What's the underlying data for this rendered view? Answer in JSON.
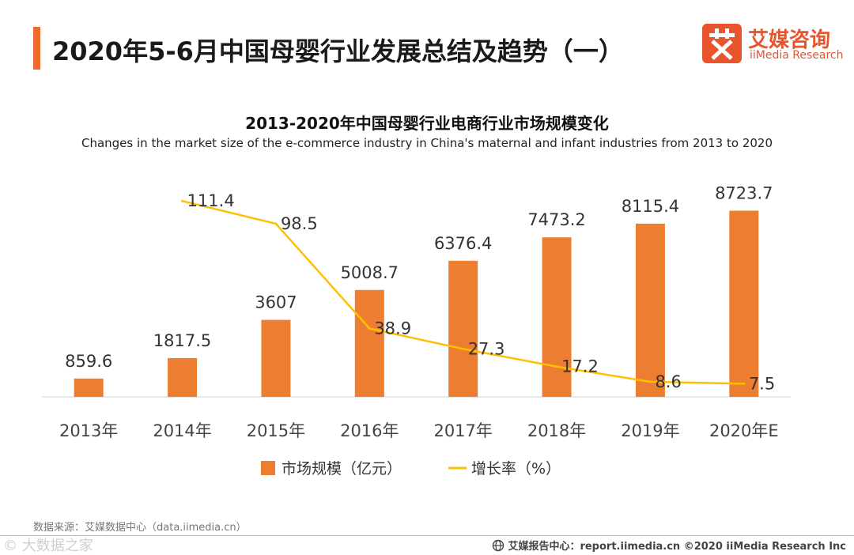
{
  "page": {
    "title": "2020年5-6月中国母婴行业发展总结及趋势（一）",
    "accent_color": "#ee6a2d"
  },
  "logo": {
    "cn": "艾媒咨询",
    "en": "iiMedia Research",
    "icon": "iimedia-logo-icon",
    "color": "#e8542b"
  },
  "chart_data": {
    "type": "bar",
    "title": "2013-2020年中国母婴行业电商行业市场规模变化",
    "subtitle": "Changes in the market size of the e-commerce industry in China's maternal and infant industries from 2013 to 2020",
    "categories": [
      "2013年",
      "2014年",
      "2015年",
      "2016年",
      "2017年",
      "2018年",
      "2019年",
      "2020年E"
    ],
    "series": [
      {
        "name": "市场规模（亿元）",
        "type": "bar",
        "color": "#ed7d31",
        "values": [
          859.6,
          1817.5,
          3607,
          5008.7,
          6376.4,
          7473.2,
          8115.4,
          8723.7
        ],
        "labels": [
          "859.6",
          "1817.5",
          "3607",
          "5008.7",
          "6376.4",
          "7473.2",
          "8115.4",
          "8723.7"
        ]
      },
      {
        "name": "增长率（%）",
        "type": "line",
        "color": "#ffc000",
        "values": [
          null,
          111.4,
          98.5,
          38.9,
          27.3,
          17.2,
          8.6,
          7.5
        ],
        "labels": [
          "",
          "111.4",
          "98.5",
          "38.9",
          "27.3",
          "17.2",
          "8.6",
          "7.5"
        ]
      }
    ],
    "xlabel": "",
    "ylabel": "",
    "ylim": [
      0,
      10000
    ],
    "y2lim": [
      0,
      125
    ],
    "grid": false,
    "legend": "bottom"
  },
  "footer": {
    "source": "数据来源：艾媒数据中心（data.iimedia.cn）",
    "report": "艾媒报告中心：report.iimedia.cn   ©2020  iiMedia Research  Inc",
    "watermark": "© 大数据之家"
  }
}
